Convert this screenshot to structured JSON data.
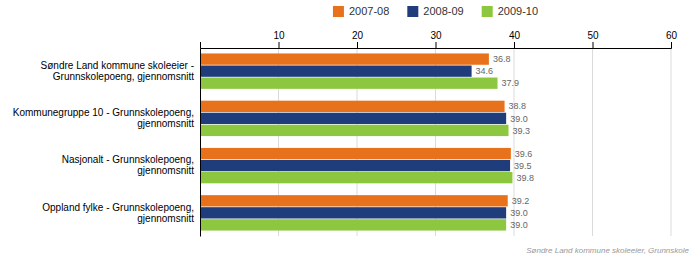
{
  "chart_data": {
    "type": "bar",
    "orientation": "horizontal",
    "categories": [
      "Søndre Land kommune skoleeier -\nGrunnskolepoeng, gjennomsnitt",
      "Kommunegruppe 10 - Grunnskolepoeng,\ngjennomsnitt",
      "Nasjonalt - Grunnskolepoeng,\ngjennomsnitt",
      "Oppland fylke - Grunnskolepoeng,\ngjennomsnitt"
    ],
    "series": [
      {
        "name": "2007-08",
        "color": "#e8721c",
        "values": [
          36.8,
          38.8,
          39.6,
          39.2
        ],
        "value_labels": [
          "36.8",
          "38.8",
          "39.6",
          "39.2"
        ]
      },
      {
        "name": "2008-09",
        "color": "#1f3d7a",
        "values": [
          34.6,
          39.0,
          39.5,
          39.0
        ],
        "value_labels": [
          "34.6",
          "39.0",
          "39.5",
          "39.0"
        ]
      },
      {
        "name": "2009-10",
        "color": "#8dc63f",
        "values": [
          37.9,
          39.3,
          39.8,
          39.0
        ],
        "value_labels": [
          "37.9",
          "39.3",
          "39.8",
          "39.0"
        ]
      }
    ],
    "xlim": [
      0,
      60
    ],
    "xticks": [
      10,
      20,
      30,
      40,
      50,
      60
    ],
    "grid": true,
    "data_labels": true,
    "legend": "top",
    "annotations": [
      "Søndre Land kommune skoleeier, Grunnskole"
    ]
  }
}
